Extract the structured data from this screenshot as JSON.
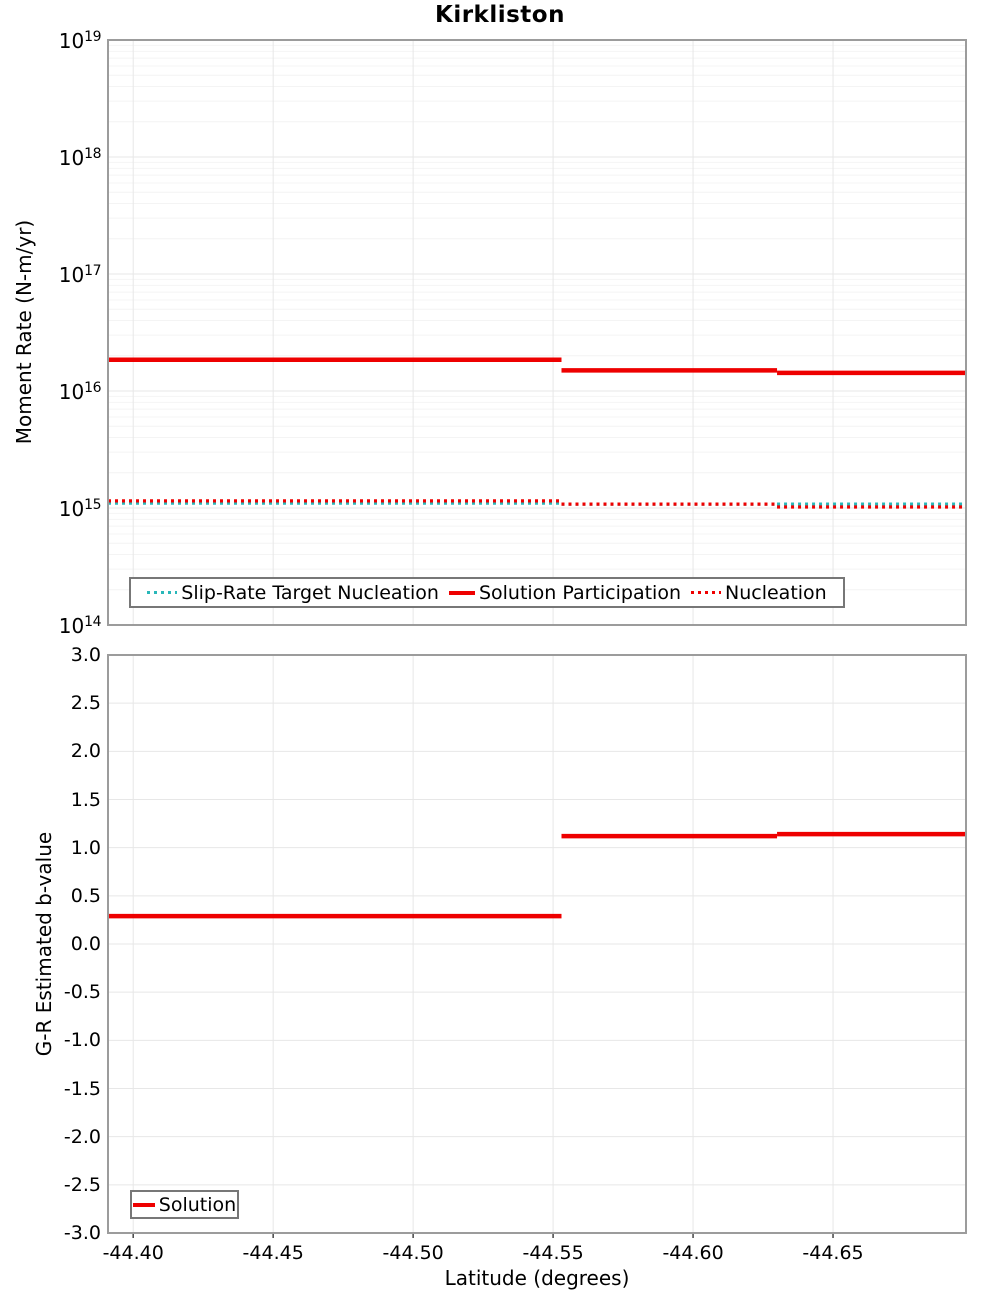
{
  "title": "Kirkliston",
  "colors": {
    "red": "#ee0000",
    "cyan": "#29b7b9"
  },
  "chart_data": [
    {
      "type": "line",
      "title": "Kirkliston",
      "ylabel": "Moment Rate (N-m/yr)",
      "y_scale": "log",
      "ylim": [
        100000000000000.0,
        1e+19
      ],
      "y_tick_exponents": [
        19,
        18,
        17,
        16,
        15,
        14
      ],
      "xlim": [
        -44.391,
        -44.6975
      ],
      "x_ticks": [
        -44.4,
        -44.45,
        -44.5,
        -44.55,
        -44.6,
        -44.65
      ],
      "grid": true,
      "legend_position": "bottom-left",
      "series": [
        {
          "name": "Slip-Rate Target Nucleation",
          "color_key": "cyan",
          "line_style": "dotted",
          "segments": [
            {
              "x0": -44.391,
              "x1": -44.553,
              "y": 1100000000000000.0
            },
            {
              "x0": -44.553,
              "x1": -44.63,
              "y": 1080000000000000.0
            },
            {
              "x0": -44.63,
              "x1": -44.6975,
              "y": 1080000000000000.0
            }
          ]
        },
        {
          "name": "Solution Participation",
          "color_key": "red",
          "line_style": "solid",
          "segments": [
            {
              "x0": -44.391,
              "x1": -44.553,
              "y": 1.85e+16
            },
            {
              "x0": -44.553,
              "x1": -44.63,
              "y": 1.5e+16
            },
            {
              "x0": -44.63,
              "x1": -44.6975,
              "y": 1.43e+16
            }
          ]
        },
        {
          "name": "Nucleation",
          "color_key": "red",
          "line_style": "dotted",
          "segments": [
            {
              "x0": -44.391,
              "x1": -44.553,
              "y": 1150000000000000.0
            },
            {
              "x0": -44.553,
              "x1": -44.63,
              "y": 1080000000000000.0
            },
            {
              "x0": -44.63,
              "x1": -44.6975,
              "y": 1020000000000000.0
            }
          ]
        }
      ]
    },
    {
      "type": "line",
      "ylabel": "G-R Estimated b-value",
      "xlabel": "Latitude (degrees)",
      "ylim": [
        -3.0,
        3.0
      ],
      "y_ticks": [
        3.0,
        2.5,
        2.0,
        1.5,
        1.0,
        0.5,
        0.0,
        -0.5,
        -1.0,
        -1.5,
        -2.0,
        -2.5,
        -3.0
      ],
      "y_tick_labels": [
        "3.0",
        "2.5",
        "2.0",
        "1.5",
        "1.0",
        "0.5",
        "0.0",
        "-0.5",
        "-1.0",
        "-1.5",
        "-2.0",
        "-2.5",
        "-3.0"
      ],
      "xlim": [
        -44.391,
        -44.6975
      ],
      "x_ticks": [
        -44.4,
        -44.45,
        -44.5,
        -44.55,
        -44.6,
        -44.65
      ],
      "x_tick_labels": [
        "-44.40",
        "-44.45",
        "-44.50",
        "-44.55",
        "-44.60",
        "-44.65"
      ],
      "grid": true,
      "legend_position": "bottom-left",
      "series": [
        {
          "name": "Solution",
          "color_key": "red",
          "line_style": "solid",
          "segments": [
            {
              "x0": -44.391,
              "x1": -44.553,
              "y": 0.29
            },
            {
              "x0": -44.553,
              "x1": -44.63,
              "y": 1.12
            },
            {
              "x0": -44.63,
              "x1": -44.6975,
              "y": 1.14
            }
          ]
        }
      ]
    }
  ]
}
